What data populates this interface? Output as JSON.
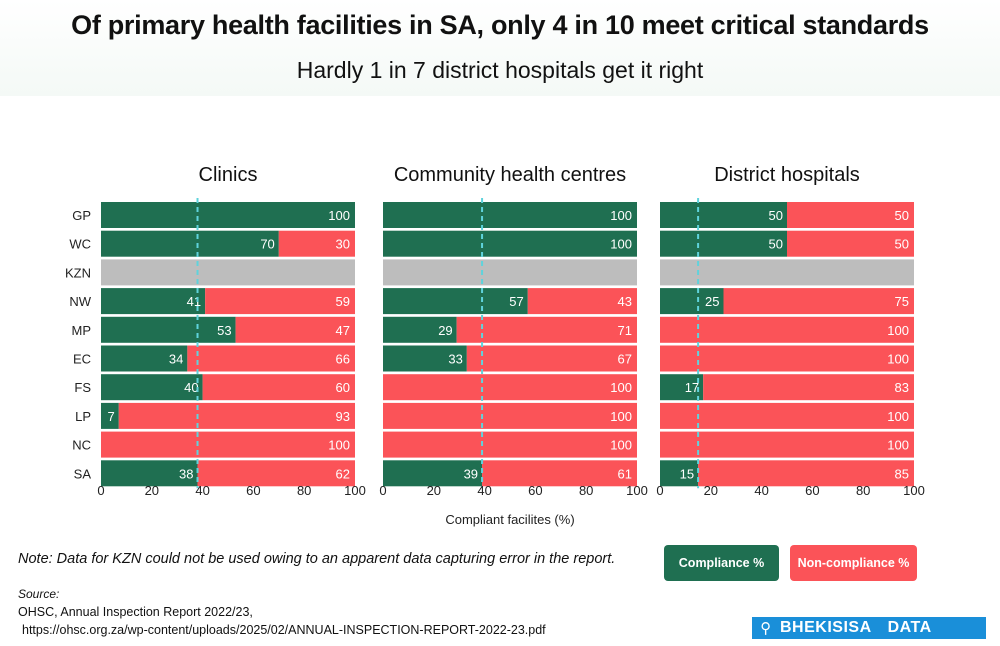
{
  "title": "Of primary health facilities in SA, only 4 in 10 meet critical standards",
  "subtitle": "Hardly 1 in 7 district hospitals get it right",
  "chart_data": {
    "type": "bar",
    "orientation": "horizontal",
    "stacked": true,
    "categories": [
      "GP",
      "WC",
      "KZN",
      "NW",
      "MP",
      "EC",
      "FS",
      "LP",
      "NC",
      "SA"
    ],
    "xlabel": "Compliant facilites (%)",
    "xlim": [
      0,
      100
    ],
    "xticks": [
      "0",
      "20",
      "40",
      "60",
      "80",
      "100"
    ],
    "no_data_category": "KZN",
    "panels": [
      {
        "title": "Clinics",
        "compliance": [
          100,
          70,
          null,
          41,
          53,
          34,
          40,
          7,
          0,
          38
        ],
        "non_compliance": [
          0,
          30,
          null,
          59,
          47,
          66,
          60,
          93,
          100,
          62
        ],
        "reference_line": 38
      },
      {
        "title": "Community health centres",
        "compliance": [
          100,
          100,
          null,
          57,
          29,
          33,
          0,
          0,
          0,
          39
        ],
        "non_compliance": [
          0,
          0,
          null,
          43,
          71,
          67,
          100,
          100,
          100,
          61
        ],
        "reference_line": 39
      },
      {
        "title": "District hospitals",
        "compliance": [
          50,
          50,
          null,
          25,
          0,
          0,
          17,
          0,
          0,
          15
        ],
        "non_compliance": [
          50,
          50,
          null,
          75,
          100,
          100,
          83,
          100,
          100,
          85
        ],
        "reference_line": 15
      }
    ],
    "legend": [
      "Compliance %",
      "Non-compliance %"
    ]
  },
  "colors": {
    "compliance": "#1f6f51",
    "non_compliance": "#fb5358",
    "no_data": "#bdbdbd",
    "reference_line": "#5fd3dc"
  },
  "note": "Note:  Data for KZN could not be used owing to an apparent data capturing error in the report.",
  "legend": {
    "compliance_label": "Compliance %",
    "non_compliance_label": "Non-compliance %"
  },
  "source": {
    "label": "Source:",
    "line1": "OHSC, Annual Inspection Report 2022/23,",
    "line2": "https://ohsc.org.za/wp-content/uploads/2025/02/ANNUAL-INSPECTION-REPORT-2022-23.pdf"
  },
  "brand": {
    "icon": "magnifier-icon",
    "word1": "BHEKISISA",
    "word2": "DATA"
  }
}
